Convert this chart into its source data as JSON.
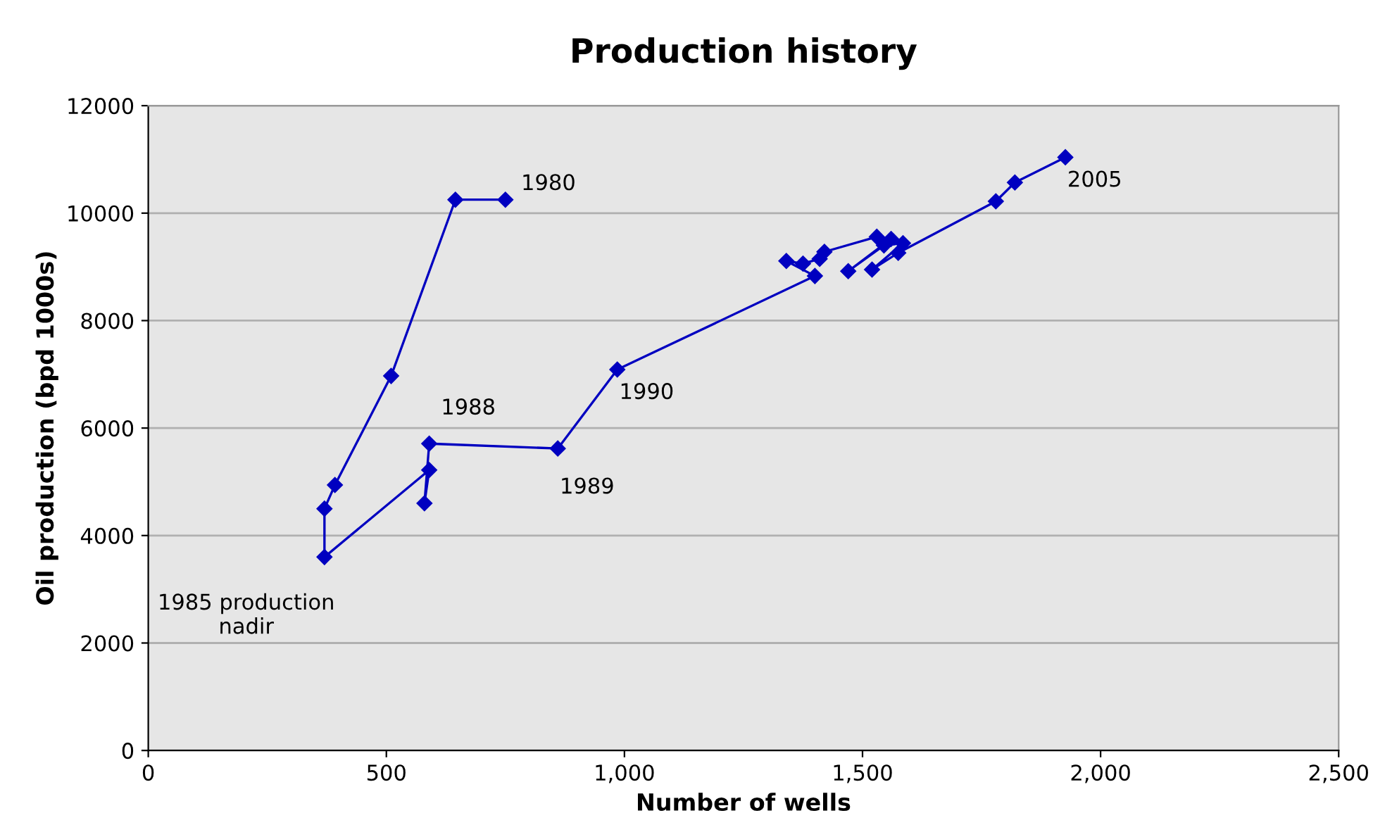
{
  "chart_data": {
    "type": "line",
    "title": "Production history",
    "xlabel": "Number of wells",
    "ylabel": "Oil production (bpd 1000s)",
    "series": [
      {
        "color": "#0000c0",
        "x": [
          750,
          645,
          510,
          392,
          370,
          370,
          590,
          580,
          590,
          860,
          985,
          1400,
          1340,
          1375,
          1410,
          1420,
          1530,
          1560,
          1470,
          1545,
          1585,
          1520,
          1575,
          1780,
          1820,
          1926
        ],
        "values": [
          10250,
          10250,
          6970,
          4940,
          4500,
          3600,
          5220,
          4600,
          5710,
          5620,
          7090,
          8830,
          9110,
          9060,
          9150,
          9280,
          9560,
          9520,
          8920,
          9400,
          9440,
          8950,
          9260,
          10220,
          10570,
          11040
        ]
      }
    ],
    "annotations": [
      {
        "text": "1980",
        "x": 750,
        "y": 10250
      },
      {
        "text": "1985 production\nnadir",
        "x": 370,
        "y": 3600
      },
      {
        "text": "1988",
        "x": 590,
        "y": 5710
      },
      {
        "text": "1989",
        "x": 860,
        "y": 5620
      },
      {
        "text": "1990",
        "x": 985,
        "y": 7090
      },
      {
        "text": "2005",
        "x": 1926,
        "y": 11040
      }
    ],
    "xlim": [
      0,
      2500
    ],
    "xticks": [
      0,
      {
        "value": 500,
        "label": "500"
      },
      {
        "value": 1000,
        "label": "1,000"
      },
      {
        "value": 1500,
        "label": "1,500"
      },
      {
        "value": 2000,
        "label": "2,000"
      },
      {
        "value": 2500,
        "label": "2,500"
      }
    ],
    "ylim": [
      0,
      12000
    ],
    "yticks": [
      0,
      2000,
      4000,
      6000,
      8000,
      10000,
      12000
    ],
    "grid": "y",
    "marker": "diamond",
    "line_style": "solid"
  }
}
